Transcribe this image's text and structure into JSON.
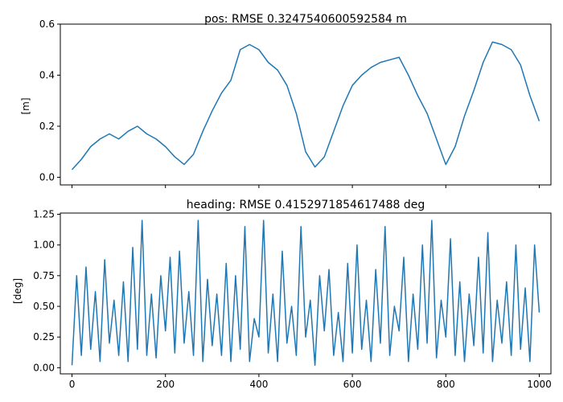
{
  "chart_data": [
    {
      "type": "line",
      "title": "pos: RMSE 0.3247540600592584 m",
      "xlabel": "",
      "ylabel": "[m]",
      "xlim": [
        -25,
        1025
      ],
      "ylim": [
        -0.03,
        0.6
      ],
      "xticks": [
        0,
        200,
        400,
        600,
        800,
        1000
      ],
      "xtick_labels_shown": false,
      "yticks": [
        0.0,
        0.2,
        0.4,
        0.6
      ],
      "ytick_labels": [
        "0.0",
        "0.2",
        "0.4",
        "0.6"
      ],
      "grid": false,
      "color": "#1f77b4",
      "series": [
        {
          "x": [
            0,
            20,
            40,
            60,
            80,
            100,
            120,
            140,
            160,
            180,
            200,
            220,
            240,
            260,
            280,
            300,
            320,
            340,
            360,
            380,
            400,
            420,
            440,
            460,
            480,
            500,
            520,
            540,
            560,
            580,
            600,
            620,
            640,
            660,
            680,
            700,
            720,
            740,
            760,
            780,
            800,
            820,
            840,
            860,
            880,
            900,
            920,
            940,
            960,
            980,
            1000
          ],
          "y": [
            0.03,
            0.07,
            0.12,
            0.15,
            0.17,
            0.15,
            0.18,
            0.2,
            0.17,
            0.15,
            0.12,
            0.08,
            0.05,
            0.09,
            0.18,
            0.26,
            0.33,
            0.38,
            0.5,
            0.52,
            0.5,
            0.45,
            0.42,
            0.36,
            0.25,
            0.1,
            0.04,
            0.08,
            0.18,
            0.28,
            0.36,
            0.4,
            0.43,
            0.45,
            0.46,
            0.47,
            0.4,
            0.32,
            0.25,
            0.15,
            0.05,
            0.12,
            0.24,
            0.34,
            0.45,
            0.53,
            0.52,
            0.5,
            0.44,
            0.32,
            0.22
          ]
        }
      ]
    },
    {
      "type": "line",
      "title": "heading: RMSE 0.4152971854617488 deg",
      "xlabel": "",
      "ylabel": "[deg]",
      "xlim": [
        -25,
        1025
      ],
      "ylim": [
        -0.05,
        1.26
      ],
      "xticks": [
        0,
        200,
        400,
        600,
        800,
        1000
      ],
      "xtick_labels": [
        "0",
        "200",
        "400",
        "600",
        "800",
        "1000"
      ],
      "yticks": [
        0.0,
        0.25,
        0.5,
        0.75,
        1.0,
        1.25
      ],
      "ytick_labels": [
        "0.00",
        "0.25",
        "0.50",
        "0.75",
        "1.00",
        "1.25"
      ],
      "grid": false,
      "color": "#1f77b4",
      "series": [
        {
          "x": [
            0,
            10,
            20,
            30,
            40,
            50,
            60,
            70,
            80,
            90,
            100,
            110,
            120,
            130,
            140,
            150,
            160,
            170,
            180,
            190,
            200,
            210,
            220,
            230,
            240,
            250,
            260,
            270,
            280,
            290,
            300,
            310,
            320,
            330,
            340,
            350,
            360,
            370,
            380,
            390,
            400,
            410,
            420,
            430,
            440,
            450,
            460,
            470,
            480,
            490,
            500,
            510,
            520,
            530,
            540,
            550,
            560,
            570,
            580,
            590,
            600,
            610,
            620,
            630,
            640,
            650,
            660,
            670,
            680,
            690,
            700,
            710,
            720,
            730,
            740,
            750,
            760,
            770,
            780,
            790,
            800,
            810,
            820,
            830,
            840,
            850,
            860,
            870,
            880,
            890,
            900,
            910,
            920,
            930,
            940,
            950,
            960,
            970,
            980,
            990,
            1000
          ],
          "y": [
            0.02,
            0.75,
            0.1,
            0.82,
            0.15,
            0.62,
            0.05,
            0.88,
            0.2,
            0.55,
            0.1,
            0.7,
            0.05,
            0.98,
            0.15,
            1.2,
            0.1,
            0.6,
            0.08,
            0.75,
            0.3,
            0.9,
            0.12,
            0.95,
            0.2,
            0.62,
            0.1,
            1.2,
            0.05,
            0.72,
            0.18,
            0.6,
            0.1,
            0.85,
            0.05,
            0.75,
            0.15,
            1.15,
            0.05,
            0.4,
            0.25,
            1.2,
            0.12,
            0.6,
            0.05,
            0.95,
            0.2,
            0.5,
            0.1,
            1.15,
            0.25,
            0.55,
            0.02,
            0.75,
            0.3,
            0.8,
            0.1,
            0.45,
            0.05,
            0.85,
            0.12,
            1.0,
            0.15,
            0.55,
            0.05,
            0.8,
            0.2,
            1.15,
            0.1,
            0.5,
            0.3,
            0.9,
            0.05,
            0.6,
            0.15,
            1.0,
            0.2,
            1.2,
            0.08,
            0.55,
            0.25,
            1.05,
            0.1,
            0.7,
            0.05,
            0.6,
            0.18,
            0.9,
            0.12,
            1.1,
            0.05,
            0.55,
            0.2,
            0.7,
            0.1,
            1.0,
            0.15,
            0.65,
            0.05,
            1.0,
            0.45
          ]
        }
      ]
    }
  ]
}
